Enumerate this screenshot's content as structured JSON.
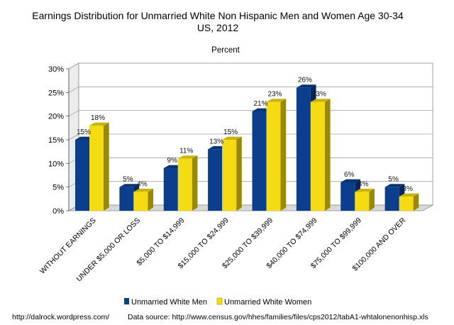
{
  "chart_data": {
    "type": "bar",
    "title": "Earnings Distribution for Unmarried White Non Hispanic Men and Women Age 30-34",
    "title_line2": "US, 2012",
    "subtitle": "Percent",
    "categories": [
      "WITHOUT EARNINGS",
      "UNDER $5,000 OR LOSS",
      "$5,000 TO $14,999",
      "$15,000 TO $24,999",
      "$25,000 TO $39,999",
      "$40,000 TO $74,999",
      "$75,000 TO $99,999",
      "$100,000 AND OVER"
    ],
    "series": [
      {
        "name": "Unmarried White Men",
        "color": "#0b3f8e",
        "values": [
          15,
          5,
          9,
          13,
          21,
          26,
          6,
          5
        ],
        "labels": [
          "15%",
          "5%",
          "9%",
          "13%",
          "21%",
          "26%",
          "6%",
          "5%"
        ]
      },
      {
        "name": "Unmarried White Women",
        "color": "#f5dc12",
        "values": [
          18,
          4,
          11,
          15,
          23,
          23,
          4,
          3
        ],
        "labels": [
          "18%",
          "4%",
          "11%",
          "15%",
          "23%",
          "23%",
          "4%",
          "3%"
        ]
      }
    ],
    "ylim": [
      0,
      30
    ],
    "yticks": [
      0,
      5,
      10,
      15,
      20,
      25,
      30
    ],
    "ytick_labels": [
      "0%",
      "5%",
      "10%",
      "15%",
      "20%",
      "25%",
      "30%"
    ],
    "xlabel": "",
    "ylabel": "",
    "legend_position": "bottom",
    "grid": true
  },
  "footer": {
    "source_left": "http://dalrock.wordpress.com/",
    "source_right": "Data source:  http://www.census.gov/hhes/families/files/cps2012/tabA1-whtalonenonhisp.xls"
  }
}
